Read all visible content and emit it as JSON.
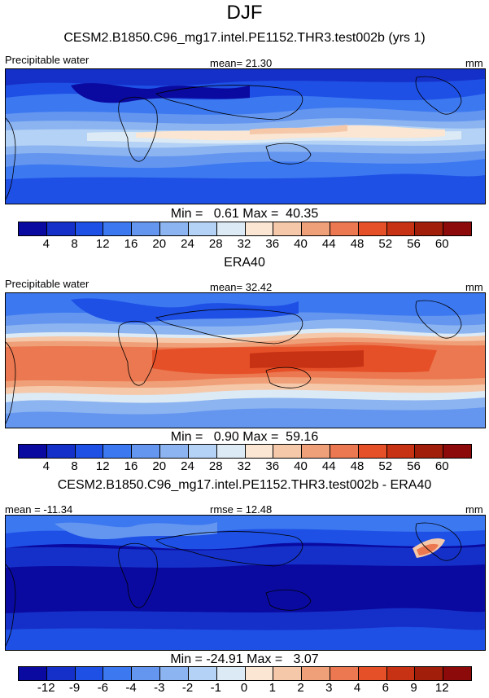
{
  "main_title": "DJF",
  "palette": [
    "#0a0aa0",
    "#1530c8",
    "#1e50e6",
    "#3c78f0",
    "#6496f0",
    "#8cb4f0",
    "#b4d2f5",
    "#dceaf5",
    "#fae6d2",
    "#f5c8aa",
    "#f0a078",
    "#eb7850",
    "#e65028",
    "#c83214",
    "#8c0a0a"
  ],
  "panels": [
    {
      "title": "CESM2.B1850.C96_mg17.intel.PE1152.THR3.test002b (yrs 1)",
      "left_label": "Precipitable water",
      "center_label": "mean=  21.30",
      "right_label": "mm",
      "minmax": "Min =   0.61 Max =  40.35",
      "tick_labels": [
        "4",
        "8",
        "12",
        "16",
        "20",
        "24",
        "28",
        "32",
        "36",
        "40",
        "44",
        "48",
        "52",
        "56",
        "60"
      ]
    },
    {
      "title": "ERA40",
      "left_label": "Precipitable water",
      "center_label": "mean=  32.42",
      "right_label": "mm",
      "minmax": "Min =   0.90 Max =  59.16",
      "tick_labels": [
        "4",
        "8",
        "12",
        "16",
        "20",
        "24",
        "28",
        "32",
        "36",
        "40",
        "44",
        "48",
        "52",
        "56",
        "60"
      ]
    },
    {
      "title": "CESM2.B1850.C96_mg17.intel.PE1152.THR3.test002b - ERA40",
      "left_label": "mean = -11.34",
      "center_label": "rmse =  12.48",
      "right_label": "mm",
      "minmax": "Min = -24.91 Max =   3.07",
      "tick_labels": [
        "-12",
        "-9",
        "-6",
        "-4",
        "-3",
        "-2",
        "-1",
        "0",
        "1",
        "2",
        "3",
        "4",
        "6",
        "9",
        "12"
      ]
    }
  ]
}
